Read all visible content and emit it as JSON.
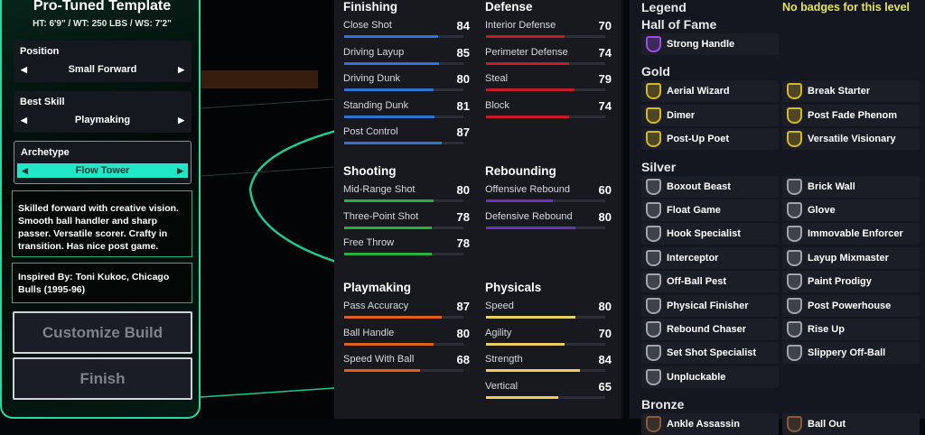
{
  "left": {
    "title": "Pro-Tuned Template",
    "subtitle": "HT: 6'9\" / WT: 250 LBS / WS: 7'2\"",
    "selectors": [
      {
        "label": "Position",
        "value": "Small Forward"
      },
      {
        "label": "Best Skill",
        "value": "Playmaking"
      },
      {
        "label": "Archetype",
        "value": "Flow Tower"
      }
    ],
    "arrow_left": "◀",
    "arrow_right": "▶",
    "description": "Skilled forward with creative vision. Smooth ball handler and sharp passer. Versatile scorer. Crafty in transition. Has nice post game.",
    "inspired": "Inspired By: Toni Kukoc, Chicago Bulls (1995-96)",
    "customize_label": "Customize Build",
    "finish_label": "Finish",
    "accent": "#1ee8c8"
  },
  "stats": [
    {
      "name": "Finishing",
      "color": "#2f74d0",
      "items": [
        [
          "Close Shot",
          84
        ],
        [
          "Driving Layup",
          85
        ],
        [
          "Driving Dunk",
          80
        ],
        [
          "Standing Dunk",
          81
        ],
        [
          "Post Control",
          87
        ]
      ]
    },
    {
      "name": "Defense",
      "color": "#c41a2a",
      "items": [
        [
          "Interior Defense",
          70
        ],
        [
          "Perimeter Defense",
          74
        ],
        [
          "Steal",
          79
        ],
        [
          "Block",
          74
        ]
      ]
    },
    {
      "name": "Shooting",
      "color": "#2cae3a",
      "items": [
        [
          "Mid-Range Shot",
          80
        ],
        [
          "Three-Point Shot",
          78
        ],
        [
          "Free Throw",
          78
        ]
      ]
    },
    {
      "name": "Rebounding",
      "color": "#6a34b8",
      "items": [
        [
          "Offensive Rebound",
          60
        ],
        [
          "Defensive Rebound",
          80
        ]
      ]
    },
    {
      "name": "Playmaking",
      "color": "#e0601c",
      "items": [
        [
          "Pass Accuracy",
          87
        ],
        [
          "Ball Handle",
          80
        ],
        [
          "Speed With Ball",
          68
        ]
      ]
    },
    {
      "name": "Physicals",
      "color": "#e8d060",
      "items": [
        [
          "Speed",
          80
        ],
        [
          "Agility",
          70
        ],
        [
          "Strength",
          84
        ],
        [
          "Vertical",
          65
        ]
      ]
    }
  ],
  "badges": {
    "legend": "Legend",
    "note": "No badges for this level",
    "note_color": "#e6e64a",
    "tiers": [
      {
        "name": "Hall of Fame",
        "color": "#9b4fe0",
        "items": [
          "Strong Handle"
        ]
      },
      {
        "name": "Gold",
        "color": "#d8b820",
        "items": [
          "Aerial Wizard",
          "Break Starter",
          "Dimer",
          "Post Fade Phenom",
          "Post-Up Poet",
          "Versatile Visionary"
        ]
      },
      {
        "name": "Silver",
        "color": "#a0a4ac",
        "items": [
          "Boxout Beast",
          "Brick Wall",
          "Float Game",
          "Glove",
          "Hook Specialist",
          "Immovable Enforcer",
          "Interceptor",
          "Layup Mixmaster",
          "Off-Ball Pest",
          "Paint Prodigy",
          "Physical Finisher",
          "Post Powerhouse",
          "Rebound Chaser",
          "Rise Up",
          "Set Shot Specialist",
          "Slippery Off-Ball",
          "Unpluckable"
        ]
      },
      {
        "name": "Bronze",
        "color": "#8a5a3a",
        "items": [
          "Ankle Assassin",
          "Ball Out"
        ]
      }
    ]
  }
}
